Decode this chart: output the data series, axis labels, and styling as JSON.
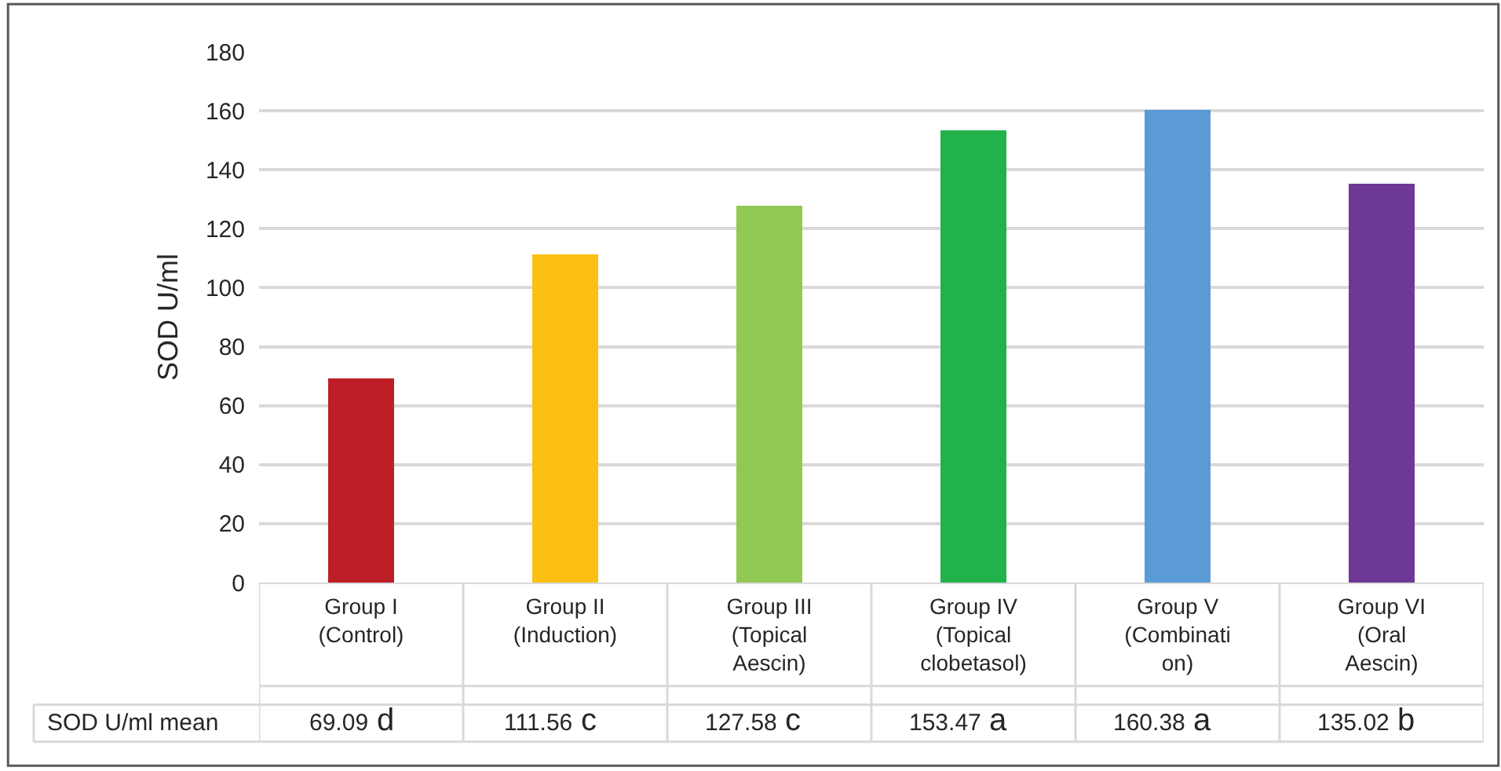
{
  "chart_data": {
    "type": "bar",
    "ylabel": "SOD U/ml",
    "categories": [
      "Group I\n(Control)",
      "Group II\n(Induction)",
      "Group III\n(Topical\nAescin)",
      "Group IV\n(Topical\nclobetasol)",
      "Group V\n(Combinati\non)",
      "Group VI\n(Oral\nAescin)"
    ],
    "series": [
      {
        "name": "SOD U/ml mean",
        "colors": [
          "#be1e26",
          "#fbc012",
          "#92c854",
          "#22b24c",
          "#5b9bd5",
          "#6e3996"
        ],
        "values": [
          69.09,
          111.56,
          127.58,
          153.47,
          160.38,
          135.02
        ]
      }
    ],
    "annotations": [
      "d",
      "c",
      "c",
      "a",
      "a",
      "b"
    ],
    "data_labels": true,
    "ylim": [
      0,
      180
    ],
    "yticks": [
      0,
      20,
      40,
      60,
      80,
      100,
      120,
      140,
      160,
      180
    ],
    "grid": "y",
    "legend": false
  }
}
